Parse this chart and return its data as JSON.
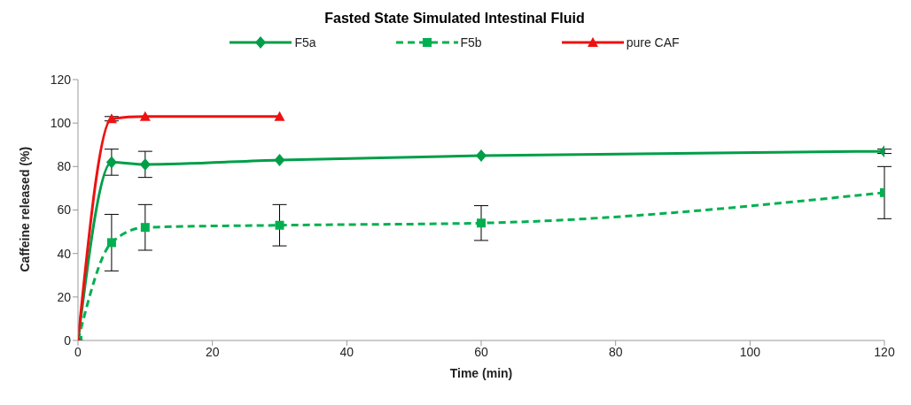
{
  "chart_data": {
    "type": "line",
    "title": "Fasted State Simulated Intestinal Fluid",
    "xlabel": "Time (min)",
    "ylabel": "Caffeine released (%)",
    "xlim": [
      0,
      120
    ],
    "xticks": [
      0,
      20,
      40,
      60,
      80,
      100,
      120
    ],
    "ylim": [
      0,
      120
    ],
    "yticks": [
      0,
      20,
      40,
      60,
      80,
      100,
      120
    ],
    "grid": false,
    "legend": "top",
    "series": [
      {
        "name": "F5a",
        "color": "#009e49",
        "marker": "diamond",
        "line_style": "solid",
        "x": [
          0,
          5,
          10,
          30,
          60,
          120
        ],
        "values": [
          0,
          82,
          81,
          83,
          85,
          87
        ],
        "errors": [
          null,
          6,
          6,
          null,
          null,
          1
        ]
      },
      {
        "name": "F5b",
        "color": "#00b050",
        "marker": "square",
        "line_style": "dashed",
        "x": [
          0,
          5,
          10,
          30,
          60,
          120
        ],
        "values": [
          0,
          45,
          52,
          53,
          54,
          68
        ],
        "errors": [
          null,
          13,
          10.5,
          9.5,
          8,
          12
        ]
      },
      {
        "name": "pure CAF",
        "color": "#ee1111",
        "marker": "triangle",
        "line_style": "solid",
        "x": [
          0,
          5,
          10,
          30
        ],
        "values": [
          0,
          102,
          103,
          103
        ],
        "errors": [
          null,
          1,
          null,
          null
        ]
      }
    ]
  }
}
